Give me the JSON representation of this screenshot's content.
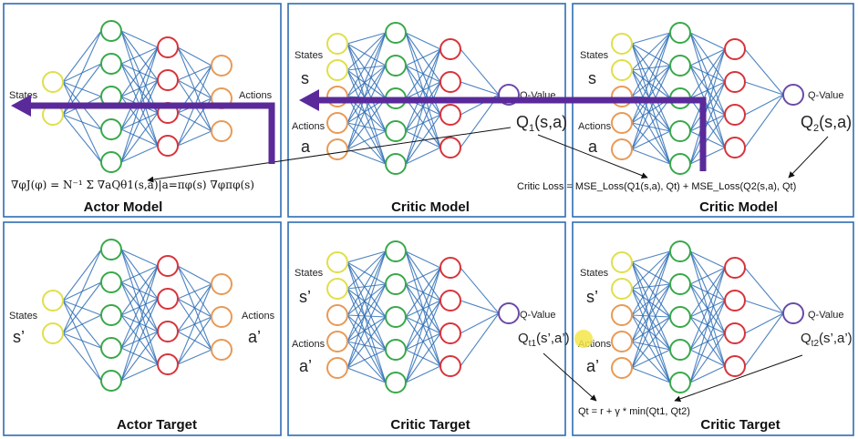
{
  "colors": {
    "input": "#e0df4a",
    "input_critic": "#e89a55",
    "hidden1": "#39a84a",
    "hidden2": "#d8333b",
    "output": "#e89a55",
    "qnode": "#6a4aa8",
    "edge": "#2f6fb6",
    "purple_arrow": "#5a2a9a",
    "panel_border": "#2f6db3"
  },
  "panels": {
    "actor_model": {
      "title": "Actor Model",
      "in_label": "States",
      "out_label": "Actions"
    },
    "critic_model1": {
      "title": "Critic Model",
      "states_label": "States",
      "states_sym": "s",
      "actions_label": "Actions",
      "actions_sym": "a",
      "q_label": "Q-Value",
      "q_sym": "Q",
      "q_sub": "1",
      "q_args": "(s,a)"
    },
    "critic_model2": {
      "title": "Critic Model",
      "states_label": "States",
      "states_sym": "s",
      "actions_label": "Actions",
      "actions_sym": "a",
      "q_label": "Q-Value",
      "q_sym": "Q",
      "q_sub": "2",
      "q_args": "(s,a)"
    },
    "actor_target": {
      "title": "Actor Target",
      "in_label": "States",
      "in_sym": "s’",
      "out_label": "Actions",
      "out_sym": "a’"
    },
    "critic_target1": {
      "title": "Critic Target",
      "states_label": "States",
      "states_sym": "s’",
      "actions_label": "Actions",
      "actions_sym": "a’",
      "q_label": "Q-Value",
      "q_sym": "Q",
      "q_sub": "t1",
      "q_args": "(s’,a’)"
    },
    "critic_target2": {
      "title": "Critic Target",
      "states_label": "States",
      "states_sym": "s’",
      "actions_label": "Actions",
      "actions_sym": "a’",
      "q_label": "Q-Value",
      "q_sym": "Q",
      "q_sub": "t2",
      "q_args": "(s’,a’)"
    }
  },
  "formulas": {
    "actor_gradient": "∇φJ(φ) = N⁻¹ Σ ∇aQθ1(s,a)|a=πφ(s) ∇φπφ(s)",
    "critic_loss": "Critic Loss = MSE_Loss(Q1(s,a), Qt) + MSE_Loss(Q2(s,a), Qt)",
    "target": "Qt = r + γ * min(Qt1, Qt2)"
  }
}
